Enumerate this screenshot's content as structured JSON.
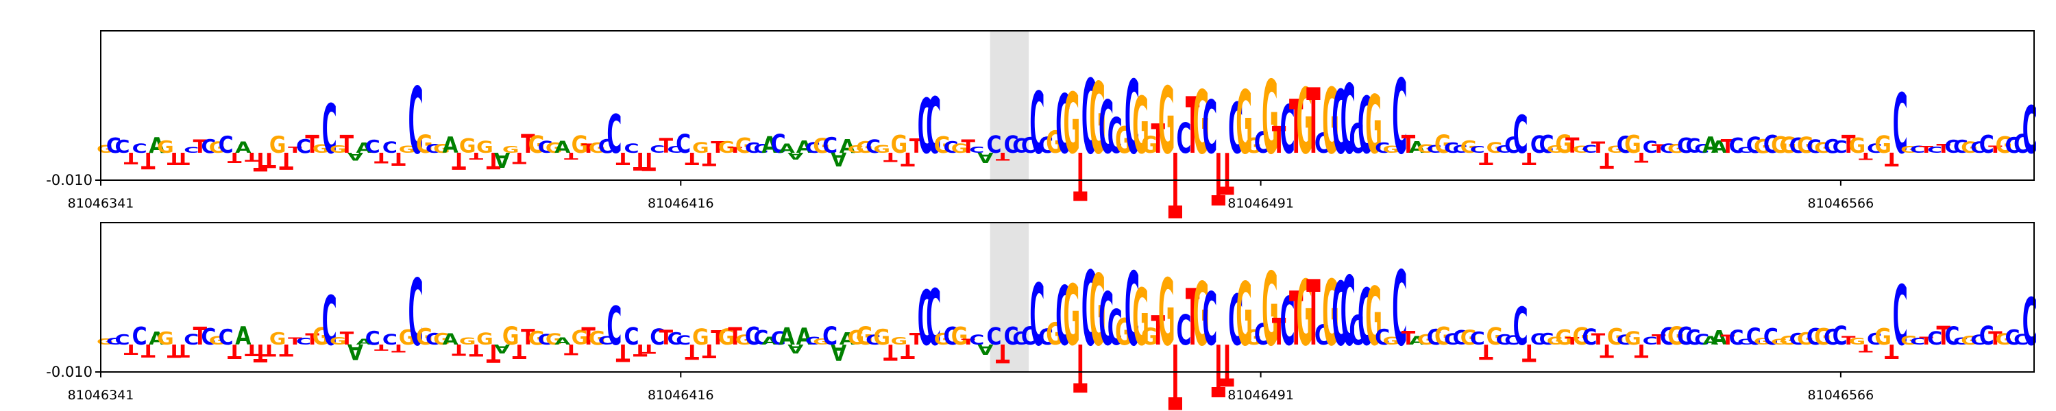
{
  "colors": {
    "A": "#008000",
    "C": "#0000ff",
    "G": "#ffa500",
    "T": "#ff0000",
    "highlight": "#e3e3e3",
    "axis": "#000000"
  },
  "chart_data": [
    {
      "type": "sequence-logo",
      "title": "",
      "xlabel": "",
      "ylabel": "",
      "ytick_labels": [
        "-0.010"
      ],
      "xtick_labels": [
        "81046341",
        "81046416",
        "81046491",
        "81046566"
      ],
      "xlim": [
        81046341,
        81046591
      ],
      "ylim": [
        -0.01,
        0.03
      ],
      "highlight_region": [
        81046456,
        81046461
      ],
      "sequence": "GCCTCTAGTTCTCGCTATTTGTTCTGCGTAACTCTGCGCGATGTGTAGTTGCGATGTGCCTCTTCTCCTGTTGTGCCACAAACGCAAGGCGTGTTCCGCGTCACTCCCCCGCGTCGCCGCGGTGTCTGCTTCGGCGTCTGTCGCCCCGCGCTAGCGCCGCTGCCCTCCGGTGCTTGCGTCTCGCCCAATCCCGCGGCGCGCCTGTCGTCGCTCTCCGCCTGCCC",
      "track": "upper"
    },
    {
      "type": "sequence-logo",
      "title": "",
      "xlabel": "",
      "ylabel": "",
      "ytick_labels": [
        "-0.010"
      ],
      "xtick_labels": [
        "81046341",
        "81046416",
        "81046491",
        "81046566"
      ],
      "xlim": [
        81046341,
        81046591
      ],
      "ylim": [
        -0.01,
        0.03
      ],
      "highlight_region": [
        81046456,
        81046461
      ],
      "sequence": "GCCTCTAGTTCTCGCTATTTGTTCTGCGTAACTCTGCGCGATGTGTAGTTGCGATGTGCCTCTTCTCCTGTTGTGCCACAAACGCAAGGCGTGTTCCGCGTCACTCCCCCGCGTCGCCGCGGTGTCTGCTTCGGCGTCTGTCGCCCCGCGCTAGCGCCGCTGCCCTCCGGTGCTTGCGTCTCGCCCAATCCCGCGGCGCGCCTGTCGTCGCTCTCCGCCTGCCC",
      "track": "lower"
    }
  ]
}
